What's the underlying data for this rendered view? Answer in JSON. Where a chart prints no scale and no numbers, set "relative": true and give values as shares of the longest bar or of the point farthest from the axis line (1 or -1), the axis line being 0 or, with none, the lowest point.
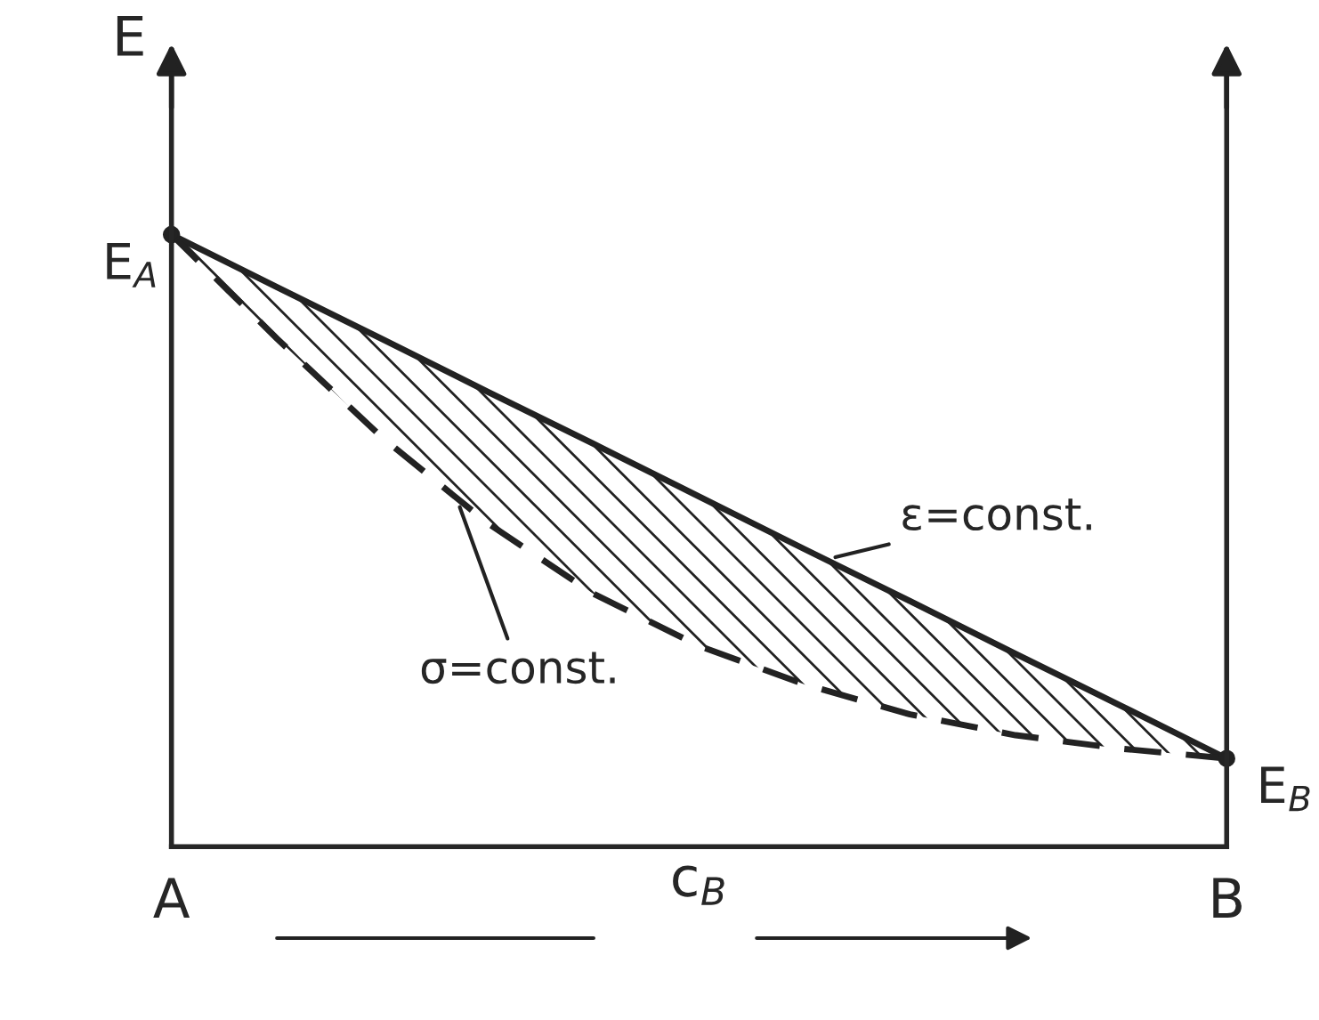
{
  "chart_data": {
    "type": "line",
    "relative": true,
    "xlabel": "c$_{B}$",
    "ylabel": "E",
    "categories": [
      "A",
      null,
      null,
      null,
      null,
      null,
      null,
      null,
      null,
      null,
      "B"
    ],
    "grid": false,
    "legend": false,
    "series": [
      {
        "name": "ε=const.",
        "color": "#222222",
        "line_style": "solid",
        "values": [
          1.0,
          0.914,
          0.829,
          0.743,
          0.658,
          0.572,
          0.486,
          0.401,
          0.315,
          0.23,
          0.144
        ]
      },
      {
        "name": "σ=const.",
        "color": "#222222",
        "line_style": "dashed",
        "values": [
          1.0,
          0.83,
          0.668,
          0.528,
          0.413,
          0.328,
          0.265,
          0.216,
          0.182,
          0.16,
          0.144
        ],
        "lower": [
          1.0,
          0.83,
          0.668,
          0.528,
          0.413,
          0.328,
          0.265,
          0.216,
          0.182,
          0.16,
          0.144
        ],
        "upper": [
          1.0,
          0.914,
          0.829,
          0.743,
          0.658,
          0.572,
          0.486,
          0.401,
          0.315,
          0.23,
          0.144
        ]
      }
    ],
    "annotations": [
      {
        "text": "E$_{A}$",
        "x": "A",
        "y": 1.0
      },
      {
        "text": "E$_{B}$",
        "x": "B",
        "y": 0.144
      }
    ]
  }
}
